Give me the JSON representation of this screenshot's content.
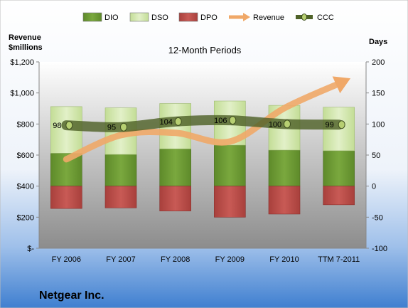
{
  "chart_data": {
    "type": "bar",
    "title": "12-Month Periods",
    "categories": [
      "FY 2006",
      "FY 2007",
      "FY 2008",
      "FY 2009",
      "FY 2010",
      "TTM 7-2011"
    ],
    "series": [
      {
        "name": "DIO",
        "kind": "stacked-bar-positive",
        "axis": "right",
        "color": "#6e9a37",
        "values": [
          53,
          51,
          60,
          66,
          58,
          57
        ]
      },
      {
        "name": "DSO",
        "kind": "stacked-bar-positive",
        "axis": "right",
        "color": "#cfe6a8",
        "values": [
          75,
          75,
          73,
          71,
          72,
          70
        ]
      },
      {
        "name": "DPO",
        "kind": "bar-negative",
        "axis": "right",
        "color": "#c0504d",
        "values": [
          -36,
          -35,
          -40,
          -50,
          -45,
          -30
        ]
      },
      {
        "name": "Revenue",
        "kind": "line-arrow",
        "axis": "left",
        "color": "#f0a868",
        "values": [
          573,
          728,
          743,
          687,
          902,
          1060
        ]
      },
      {
        "name": "CCC",
        "kind": "line-markers",
        "axis": "right",
        "color": "#4f6228",
        "values": [
          98,
          95,
          104,
          106,
          100,
          99
        ],
        "labels": [
          "98",
          "95",
          "104",
          "106",
          "100",
          "99"
        ]
      }
    ],
    "left_axis": {
      "label_line1": "Revenue",
      "label_line2": "$millions",
      "ylim": [
        0,
        1200
      ],
      "ticks": [
        "$-",
        "$200",
        "$400",
        "$600",
        "$800",
        "$1,000",
        "$1,200"
      ]
    },
    "right_axis": {
      "label": "Days",
      "ylim": [
        -100,
        200
      ],
      "ticks": [
        "-100",
        "-50",
        "0",
        "50",
        "100",
        "150",
        "200"
      ]
    },
    "grid": false,
    "legend_position": "top"
  },
  "company": "Netgear Inc.",
  "colors": {
    "bg_top": "#ffffff",
    "bg_bottom": "#3f7fd0",
    "plot_top": "#ffffff",
    "plot_bottom": "#8c8c8c"
  }
}
